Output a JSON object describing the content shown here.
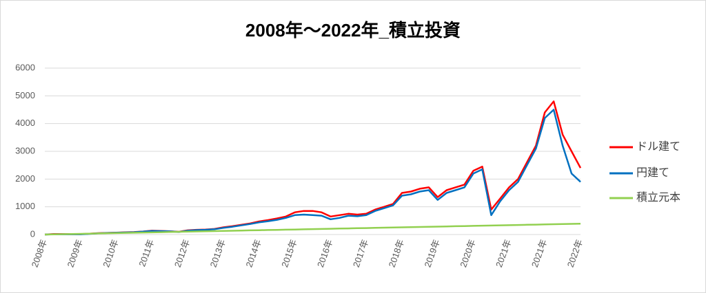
{
  "chart_data": {
    "type": "line",
    "title": "2008年～2022年_積立投資",
    "categories": [
      "2008年",
      null,
      null,
      null,
      "2009年",
      null,
      null,
      null,
      "2010年",
      null,
      null,
      null,
      "2011年",
      null,
      null,
      null,
      "2012年",
      null,
      null,
      null,
      "2013年",
      null,
      null,
      null,
      "2014年",
      null,
      null,
      null,
      "2015年",
      null,
      null,
      null,
      "2016年",
      null,
      null,
      null,
      "2017年",
      null,
      null,
      null,
      "2018年",
      null,
      null,
      null,
      "2019年",
      null,
      null,
      null,
      "2020年",
      null,
      null,
      null,
      "2021年",
      null,
      null,
      null,
      "2021年",
      null,
      null,
      null,
      "2022年"
    ],
    "series": [
      {
        "name": "ドル建て",
        "color": "#ff0000",
        "values": [
          0,
          20,
          20,
          15,
          15,
          30,
          50,
          60,
          70,
          80,
          90,
          110,
          140,
          130,
          120,
          100,
          150,
          170,
          180,
          200,
          260,
          300,
          350,
          400,
          470,
          520,
          580,
          650,
          800,
          850,
          850,
          800,
          650,
          700,
          750,
          720,
          750,
          900,
          1000,
          1100,
          1500,
          1550,
          1650,
          1700,
          1350,
          1600,
          1700,
          1800,
          2300,
          2450,
          900,
          1300,
          1700,
          2000,
          2600,
          3200,
          4400,
          4800,
          3600,
          3000,
          2400
        ]
      },
      {
        "name": "円建て",
        "color": "#0070c0",
        "values": [
          0,
          10,
          10,
          10,
          10,
          25,
          45,
          55,
          65,
          75,
          85,
          105,
          130,
          125,
          115,
          95,
          140,
          160,
          170,
          190,
          240,
          280,
          330,
          380,
          440,
          480,
          530,
          600,
          700,
          720,
          700,
          680,
          550,
          600,
          680,
          660,
          700,
          850,
          950,
          1050,
          1400,
          1450,
          1550,
          1600,
          1250,
          1500,
          1600,
          1700,
          2200,
          2350,
          700,
          1200,
          1600,
          1900,
          2500,
          3100,
          4200,
          4500,
          3200,
          2200,
          1900
        ]
      },
      {
        "name": "積立元本",
        "color": "#92d050",
        "values": [
          0,
          7,
          13,
          20,
          26,
          33,
          39,
          46,
          52,
          59,
          65,
          72,
          78,
          85,
          91,
          98,
          104,
          111,
          117,
          124,
          130,
          137,
          143,
          150,
          156,
          163,
          169,
          176,
          182,
          189,
          195,
          202,
          208,
          215,
          221,
          228,
          234,
          241,
          247,
          254,
          260,
          267,
          273,
          280,
          286,
          293,
          299,
          306,
          312,
          319,
          325,
          332,
          338,
          345,
          351,
          358,
          364,
          371,
          377,
          384,
          390
        ]
      }
    ],
    "ylim": [
      0,
      6000
    ],
    "yticks": [
      0,
      1000,
      2000,
      3000,
      4000,
      5000,
      6000
    ],
    "grid": true,
    "legend": "right"
  }
}
